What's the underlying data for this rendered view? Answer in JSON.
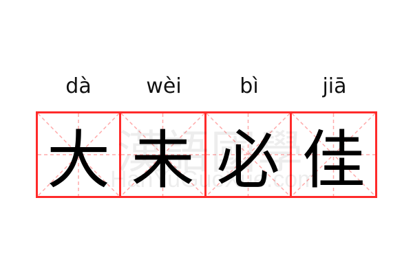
{
  "entries": [
    {
      "pinyin": "dà",
      "char": "大"
    },
    {
      "pinyin": "wèi",
      "char": "未"
    },
    {
      "pinyin": "bì",
      "char": "必"
    },
    {
      "pinyin": "jiā",
      "char": "佳"
    }
  ],
  "watermark": {
    "cn": "漢語國學",
    "en": "HanYuGuoXue.com"
  },
  "colors": {
    "border": "#ff2a2a",
    "guide": "#ffaaaa",
    "text": "#000000"
  }
}
